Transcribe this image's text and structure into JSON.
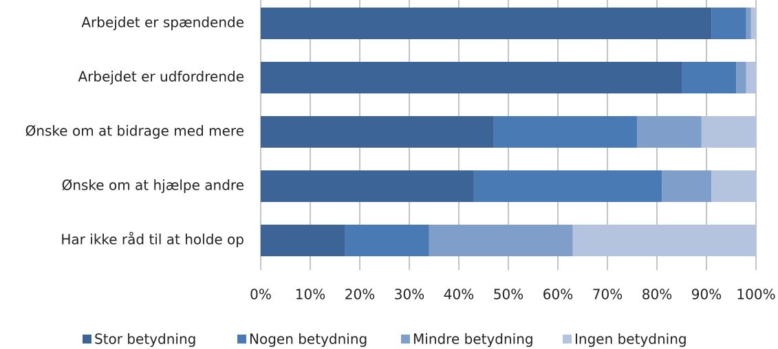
{
  "chart_data": {
    "type": "stacked-barh",
    "categories": [
      "Arbejdet er spændende",
      "Arbejdet er udfordrende",
      "Ønske om at bidrage med mere",
      "Ønske om at hjælpe andre",
      "Har ikke råd til at holde op"
    ],
    "series": [
      {
        "name": "Stor betydning",
        "color": "#3c6496",
        "values": [
          91,
          85,
          47,
          43,
          17
        ]
      },
      {
        "name": "Nogen betydning",
        "color": "#4a7ab4",
        "values": [
          7,
          11,
          29,
          38,
          17
        ]
      },
      {
        "name": "Mindre betydning",
        "color": "#7f9ec9",
        "values": [
          1,
          2,
          13,
          10,
          29
        ]
      },
      {
        "name": "Ingen betydning",
        "color": "#b4c4de",
        "values": [
          1,
          2,
          11,
          9,
          37
        ]
      }
    ],
    "xlim": [
      0,
      100
    ],
    "xticks": [
      {
        "value": 0,
        "label": "0%"
      },
      {
        "value": 10,
        "label": "10%"
      },
      {
        "value": 20,
        "label": "20%"
      },
      {
        "value": 30,
        "label": "30%"
      },
      {
        "value": 40,
        "label": "40%"
      },
      {
        "value": 50,
        "label": "50%"
      },
      {
        "value": 60,
        "label": "60%"
      },
      {
        "value": 70,
        "label": "70%"
      },
      {
        "value": 80,
        "label": "80%"
      },
      {
        "value": 90,
        "label": "90%"
      },
      {
        "value": 100,
        "label": "100%"
      }
    ],
    "grid": true,
    "legend": "bottom"
  }
}
